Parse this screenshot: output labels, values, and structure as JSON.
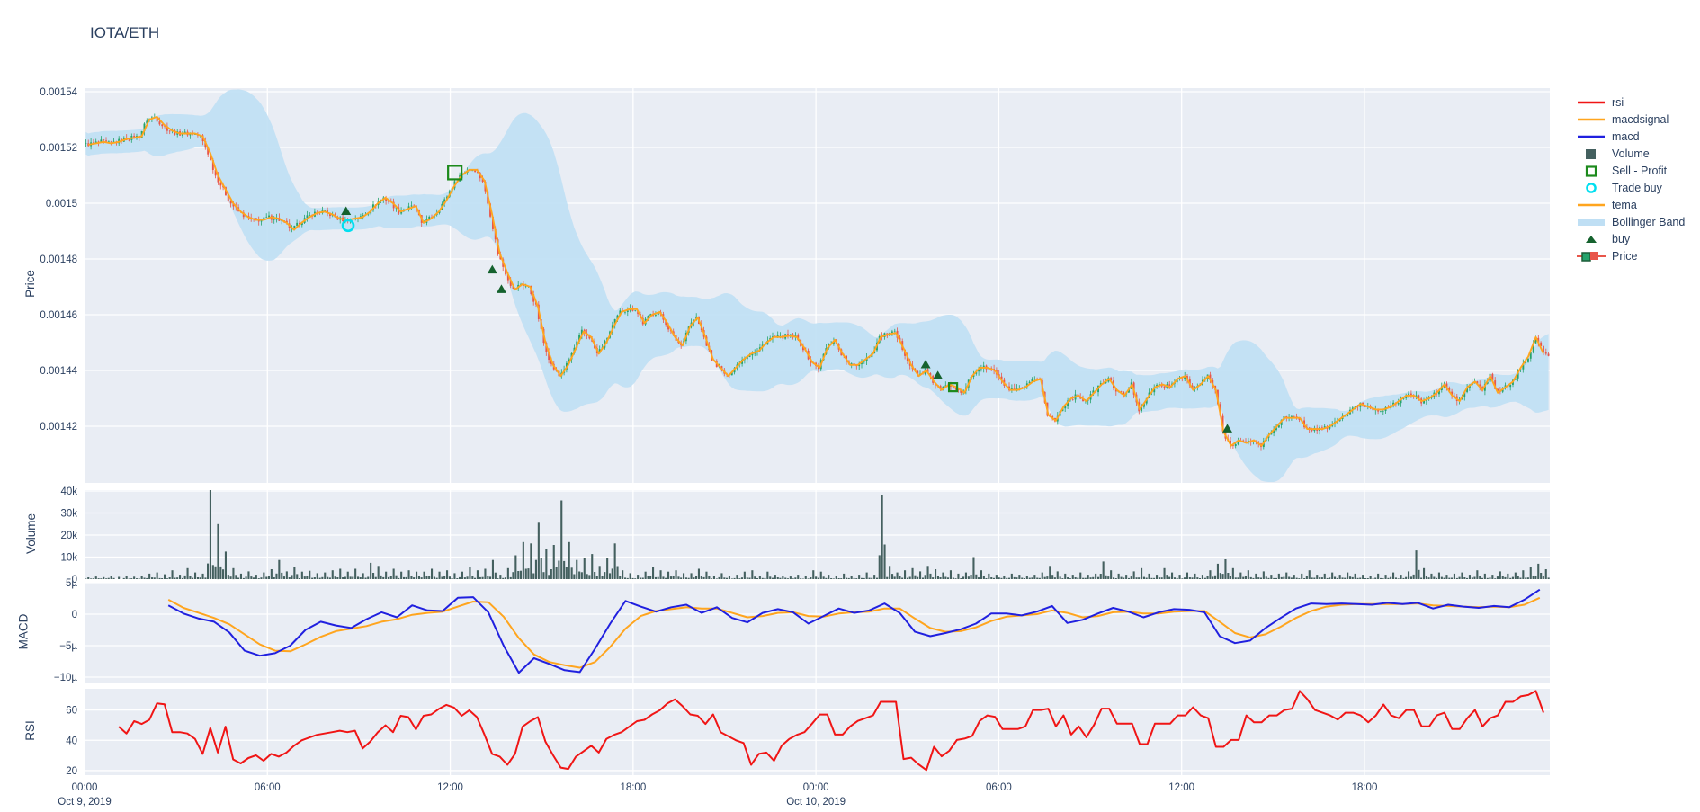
{
  "title": "IOTA/ETH",
  "colors": {
    "plot_bg": "#e9edf4",
    "grid": "#ffffff",
    "text": "#2a3f5f",
    "candle_up": "#26a36c",
    "candle_down": "#e8564a",
    "tema": "#ffa51e",
    "macd": "#2020df",
    "macdsignal": "#ffa51e",
    "rsi": "#f01515",
    "volume_bar": "#44605f",
    "bollinger": "#bfdff4",
    "buy_marker": "#15622e",
    "sell_marker": "#1c8a1c",
    "trade_buy_marker": "#00dff0"
  },
  "legend": [
    {
      "label": "rsi",
      "marker": "line",
      "color": "#f01515"
    },
    {
      "label": "macdsignal",
      "marker": "line",
      "color": "#ffa51e"
    },
    {
      "label": "macd",
      "marker": "line",
      "color": "#2020df"
    },
    {
      "label": "Volume",
      "marker": "square",
      "color": "#44605f"
    },
    {
      "label": "Sell - Profit",
      "marker": "square-open",
      "color": "#1c8a1c"
    },
    {
      "label": "Trade buy",
      "marker": "circle-open",
      "color": "#00dff0"
    },
    {
      "label": "tema",
      "marker": "line",
      "color": "#ffa51e"
    },
    {
      "label": "Bollinger Band",
      "marker": "band",
      "color": "#bfdff4"
    },
    {
      "label": "buy",
      "marker": "triangle",
      "color": "#15622e"
    },
    {
      "label": "Price",
      "marker": "candle",
      "color": "#26a36c",
      "color2": "#e8564a"
    }
  ],
  "axes": {
    "price": {
      "title": "Price",
      "ticks": [
        {
          "label": "0.00154",
          "v": 1540
        },
        {
          "label": "0.00152",
          "v": 1520
        },
        {
          "label": "0.0015",
          "v": 1500
        },
        {
          "label": "0.00148",
          "v": 1480
        },
        {
          "label": "0.00146",
          "v": 1460
        },
        {
          "label": "0.00144",
          "v": 1440
        },
        {
          "label": "0.00142",
          "v": 1420
        }
      ]
    },
    "volume": {
      "title": "Volume",
      "ticks": [
        {
          "label": "40k",
          "v": 40
        },
        {
          "label": "30k",
          "v": 30
        },
        {
          "label": "20k",
          "v": 20
        },
        {
          "label": "10k",
          "v": 10
        },
        {
          "label": "0",
          "v": 0
        }
      ]
    },
    "macd": {
      "title": "MACD",
      "ticks": [
        {
          "label": "5µ",
          "v": 5
        },
        {
          "label": "0",
          "v": 0
        },
        {
          "label": "−5µ",
          "v": -5
        },
        {
          "label": "−10µ",
          "v": -10
        }
      ]
    },
    "rsi": {
      "title": "RSI",
      "ticks": [
        {
          "label": "60",
          "v": 60
        },
        {
          "label": "40",
          "v": 40
        },
        {
          "label": "20",
          "v": 20
        }
      ]
    },
    "x": {
      "ticks": [
        {
          "label": "00:00",
          "t": 0
        },
        {
          "label": "06:00",
          "t": 6
        },
        {
          "label": "12:00",
          "t": 12
        },
        {
          "label": "18:00",
          "t": 18
        },
        {
          "label": "00:00",
          "t": 24
        },
        {
          "label": "06:00",
          "t": 30
        },
        {
          "label": "12:00",
          "t": 36
        },
        {
          "label": "18:00",
          "t": 42
        }
      ],
      "date_labels": [
        {
          "label": "Oct 9, 2019",
          "t": 0
        },
        {
          "label": "Oct 10, 2019",
          "t": 24
        }
      ]
    }
  },
  "chart_data": {
    "type": "multi-panel financial (candlestick + volume bar + macd lines + rsi line)",
    "x_unit": "hours since Oct 9, 2019 00:00",
    "x_range_hours": [
      0,
      48
    ],
    "price_unit": "micro-ETH (value × 1e-6 = price)",
    "price_range_micro": [
      1399.6,
      1541.3
    ],
    "panels": [
      "Price",
      "Volume",
      "MACD",
      "RSI"
    ],
    "close_interval_h": 0.25,
    "close_micro": [
      1521,
      1521.5,
      1522,
      1521.5,
      1522,
      1523,
      1523.5,
      1524,
      1530,
      1531,
      1528,
      1526,
      1525,
      1525,
      1525,
      1524,
      1518,
      1510,
      1505,
      1500,
      1497,
      1495,
      1494,
      1494,
      1495,
      1494.5,
      1493,
      1490.5,
      1493,
      1495,
      1496.5,
      1497,
      1496,
      1494.5,
      1494,
      1494.5,
      1495,
      1497,
      1500,
      1502,
      1500,
      1497,
      1498,
      1499,
      1493,
      1494.5,
      1497,
      1501,
      1506,
      1510,
      1512,
      1512,
      1508,
      1496,
      1482,
      1475,
      1469,
      1471,
      1470,
      1463,
      1450,
      1442,
      1438,
      1442,
      1448,
      1454,
      1452,
      1446,
      1450,
      1456,
      1461,
      1462,
      1462,
      1457,
      1460,
      1461,
      1457,
      1452,
      1449,
      1456,
      1459,
      1452,
      1444,
      1441,
      1438,
      1441,
      1444,
      1446,
      1447,
      1450,
      1452,
      1452,
      1452.5,
      1452,
      1448,
      1443,
      1441,
      1448,
      1451,
      1446,
      1442,
      1442,
      1444,
      1446,
      1452,
      1453,
      1453.5,
      1448,
      1442,
      1438,
      1440,
      1436,
      1433,
      1435,
      1434,
      1432,
      1438,
      1441,
      1441,
      1440,
      1436,
      1433,
      1433,
      1434,
      1436,
      1437,
      1424,
      1422,
      1427,
      1430,
      1431,
      1429,
      1432,
      1435,
      1437,
      1433,
      1431,
      1435,
      1426,
      1430,
      1434,
      1435,
      1434,
      1437,
      1438,
      1433,
      1435,
      1438,
      1433,
      1418,
      1413,
      1415,
      1414,
      1415,
      1413,
      1417,
      1420,
      1423,
      1423,
      1423,
      1419,
      1419,
      1419,
      1420,
      1422,
      1424,
      1426,
      1428,
      1427,
      1426,
      1426,
      1427,
      1429,
      1431,
      1431,
      1429,
      1430,
      1432,
      1435,
      1431,
      1429,
      1434,
      1436,
      1433,
      1438,
      1432,
      1434,
      1436,
      1441,
      1445,
      1452,
      1446
    ],
    "tema_note": "orange tema line follows close_micro series",
    "bollinger_note": "light-blue band = rolling mean of closes ± ~2.3 sigma (balloons after each large move)",
    "volume_interval_h": 0.25,
    "volume_k": [
      0.8,
      1.2,
      0.9,
      1.5,
      1.0,
      1.4,
      1.1,
      1.6,
      2.5,
      3.0,
      2.2,
      4.0,
      2.0,
      5.0,
      3.0,
      2.5,
      41.0,
      25.0,
      12.5,
      5.0,
      2.5,
      3.5,
      2.0,
      3.0,
      4.5,
      8.7,
      3.5,
      5.5,
      3.4,
      3.8,
      2.7,
      3.0,
      4.0,
      4.7,
      3.4,
      4.7,
      2.7,
      7.4,
      6.0,
      3.4,
      4.7,
      3.4,
      4.0,
      3.4,
      3.4,
      4.7,
      3.4,
      4.0,
      2.7,
      3.4,
      5.4,
      4.0,
      4.7,
      8.7,
      2.0,
      5.0,
      10.8,
      16.8,
      16.2,
      25.6,
      13.5,
      15.5,
      35.7,
      16.8,
      8.7,
      9.4,
      11.4,
      6.0,
      9.4,
      16.2,
      4.0,
      2.7,
      2.0,
      3.4,
      5.4,
      4.0,
      3.4,
      4.0,
      2.7,
      2.7,
      4.7,
      3.4,
      1.5,
      2.7,
      1.5,
      2.0,
      3.4,
      4.0,
      1.5,
      3.4,
      2.0,
      1.5,
      1.2,
      2.0,
      1.5,
      4.0,
      3.4,
      2.0,
      1.5,
      2.5,
      1.5,
      2.0,
      3.0,
      2.0,
      38.0,
      6.0,
      3.0,
      4.0,
      5.0,
      3.5,
      6.0,
      4.5,
      3.0,
      4.0,
      2.5,
      3.0,
      10.0,
      4.0,
      2.5,
      2.0,
      1.5,
      2.5,
      2.0,
      1.5,
      2.0,
      3.0,
      6.0,
      3.5,
      2.5,
      2.0,
      3.0,
      2.0,
      2.5,
      8.0,
      4.0,
      2.5,
      2.0,
      3.5,
      5.0,
      2.5,
      2.0,
      5.0,
      3.0,
      2.0,
      3.0,
      2.5,
      2.0,
      4.0,
      7.0,
      9.0,
      5.0,
      3.0,
      4.0,
      2.5,
      3.5,
      2.0,
      2.5,
      3.0,
      2.0,
      2.5,
      4.0,
      2.0,
      2.5,
      3.0,
      2.0,
      3.0,
      2.5,
      2.0,
      1.5,
      2.5,
      2.0,
      3.0,
      2.0,
      3.5,
      13.0,
      5.0,
      2.5,
      3.0,
      2.0,
      2.5,
      3.0,
      2.0,
      4.0,
      2.5,
      2.0,
      3.5,
      2.5,
      3.0,
      4.0,
      5.5,
      7.0,
      4.5
    ],
    "macd_interval_h": 0.5,
    "macd_unit": "µ (1e-6)",
    "macd": [
      null,
      null,
      null,
      null,
      null,
      1.4,
      0.1,
      -0.7,
      -1.2,
      -2.9,
      -5.8,
      -6.6,
      -6.2,
      -5.0,
      -2.5,
      -1.2,
      -1.8,
      -2.2,
      -0.8,
      0.3,
      -0.5,
      1.4,
      0.6,
      0.5,
      2.6,
      2.7,
      0.3,
      -5.0,
      -9.3,
      -7.0,
      -7.9,
      -8.9,
      -9.2,
      -5.5,
      -1.5,
      2.1,
      1.2,
      0.4,
      1.1,
      1.5,
      0.2,
      1.1,
      -0.6,
      -1.3,
      0.2,
      0.8,
      0.3,
      -1.5,
      -0.3,
      0.9,
      0.2,
      0.6,
      1.7,
      0.2,
      -2.8,
      -3.5,
      -3.0,
      -2.4,
      -1.5,
      0.1,
      0.1,
      -0.2,
      0.4,
      1.3,
      -1.4,
      -0.9,
      0.1,
      1.0,
      0.4,
      -0.5,
      0.3,
      0.8,
      0.7,
      0.3,
      -3.5,
      -4.6,
      -4.2,
      -2.2,
      -0.6,
      0.9,
      1.7,
      1.6,
      1.7,
      1.6,
      1.5,
      1.8,
      1.6,
      1.8,
      0.9,
      1.5,
      1.2,
      1.0,
      1.3,
      1.1,
      2.3,
      3.9
    ],
    "macdsignal": [
      null,
      null,
      null,
      null,
      null,
      2.3,
      1.0,
      0.2,
      -0.6,
      -1.6,
      -3.2,
      -4.8,
      -5.8,
      -5.9,
      -4.8,
      -3.6,
      -2.7,
      -2.3,
      -1.9,
      -1.2,
      -0.8,
      -0.1,
      0.2,
      0.4,
      1.2,
      2.0,
      1.9,
      -0.4,
      -3.8,
      -6.4,
      -7.6,
      -8.1,
      -8.5,
      -7.6,
      -5.2,
      -2.3,
      -0.3,
      0.5,
      0.8,
      1.1,
      0.9,
      0.9,
      0.2,
      -0.5,
      -0.3,
      0.2,
      0.3,
      -0.3,
      -0.4,
      0.1,
      0.3,
      0.4,
      0.9,
      0.9,
      -0.7,
      -2.2,
      -2.8,
      -2.7,
      -2.1,
      -1.1,
      -0.4,
      -0.2,
      0.0,
      0.6,
      0.2,
      -0.5,
      -0.3,
      0.3,
      0.4,
      0.1,
      0.1,
      0.4,
      0.5,
      0.5,
      -1.2,
      -3.0,
      -3.7,
      -3.2,
      -2.0,
      -0.6,
      0.5,
      1.2,
      1.5,
      1.6,
      1.6,
      1.6,
      1.6,
      1.7,
      1.4,
      1.3,
      1.2,
      1.1,
      1.2,
      1.1,
      1.5,
      2.6
    ],
    "rsi_interval_h": 0.25,
    "rsi_range": [
      17,
      74
    ],
    "rsi": [
      null,
      null,
      null,
      null,
      49,
      44.5,
      52.6,
      50.8,
      53.5,
      64.3,
      63.8,
      45.4,
      45.4,
      44.5,
      40.9,
      31,
      48.1,
      31.9,
      49,
      27.4,
      24.7,
      28.3,
      30.1,
      26.5,
      31,
      29.2,
      31.9,
      36.4,
      40,
      41.8,
      43.6,
      44.5,
      45.4,
      46.3,
      45.4,
      46.3,
      34.6,
      39.1,
      45.4,
      49.9,
      45.4,
      56.2,
      55.3,
      47.2,
      56.2,
      57.1,
      60.7,
      63.4,
      61.6,
      56.2,
      59.8,
      55.3,
      43.6,
      31,
      29.2,
      23.8,
      31,
      49,
      52.6,
      55.3,
      39.1,
      30.1,
      22,
      21.1,
      29.2,
      32.8,
      36.4,
      31.9,
      40.9,
      43.6,
      45.4,
      49,
      52.6,
      53.5,
      57.1,
      59.8,
      64.3,
      67,
      62.5,
      57.1,
      56.2,
      50.8,
      57.1,
      45.4,
      42.7,
      40,
      38.2,
      23.8,
      31,
      31.9,
      26.5,
      36.4,
      40.9,
      43.6,
      45.4,
      51,
      57,
      57,
      43.8,
      43.8,
      49.2,
      52.8,
      54.6,
      56.4,
      65.4,
      65.4,
      65.4,
      27.6,
      28.5,
      24,
      20.4,
      35.7,
      29.4,
      33,
      40.2,
      41.1,
      42.9,
      52.8,
      56.4,
      55.5,
      47.4,
      47.4,
      47.4,
      49.2,
      60,
      60,
      60.9,
      49.2,
      56.4,
      43.8,
      49.2,
      42,
      50.1,
      60.9,
      60.9,
      51,
      51,
      51,
      37.5,
      37.5,
      51,
      51,
      51,
      56.4,
      56.4,
      61.8,
      56.4,
      54.6,
      35.7,
      35.7,
      40.2,
      40.2,
      56.4,
      51.9,
      51.9,
      56.4,
      56.4,
      60,
      60.9,
      72.6,
      67.2,
      60,
      58.2,
      56.4,
      53.7,
      58.2,
      58.2,
      56.4,
      51.9,
      56.4,
      63.6,
      56.4,
      54.6,
      60,
      60,
      49.2,
      49.2,
      56.4,
      58.2,
      47.4,
      47.4,
      54.6,
      60,
      49.2,
      54.6,
      56.4,
      65.4,
      65.4,
      69,
      69.9,
      72.6,
      58.2
    ],
    "markers": {
      "buy": [
        {
          "t": 8.58,
          "price_micro": 1495
        },
        {
          "t": 13.38,
          "price_micro": 1474
        },
        {
          "t": 13.68,
          "price_micro": 1467
        },
        {
          "t": 27.6,
          "price_micro": 1440
        },
        {
          "t": 28.0,
          "price_micro": 1436
        },
        {
          "t": 37.5,
          "price_micro": 1417
        }
      ],
      "sell_profit": [
        {
          "t": 12.15,
          "price_micro": 1511,
          "size": 15
        },
        {
          "t": 28.5,
          "price_micro": 1434,
          "size": 9
        }
      ],
      "trade_buy": [
        {
          "t": 8.65,
          "price_micro": 1492
        }
      ]
    }
  }
}
